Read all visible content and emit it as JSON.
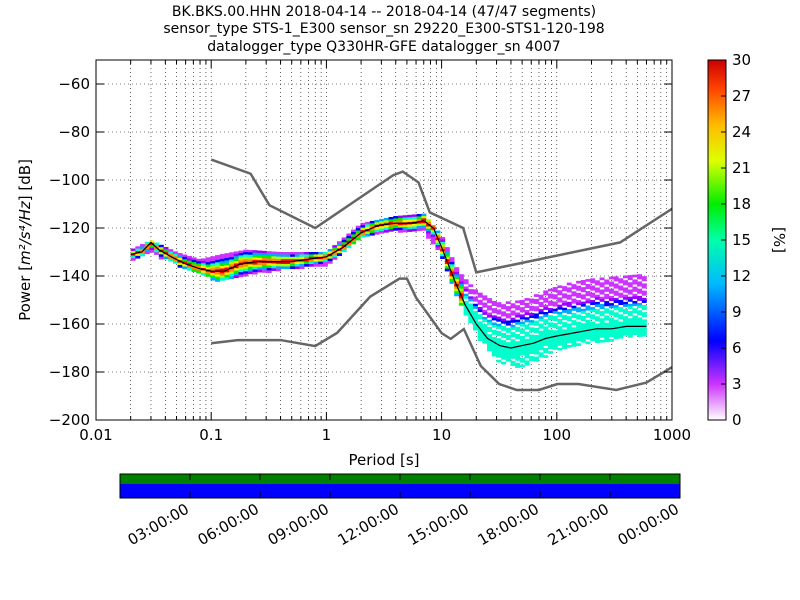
{
  "title": {
    "line1": "BK.BKS.00.HHN   2018-04-14 -- 2018-04-14  (47/47 segments)",
    "line2": "sensor_type STS-1_E300 sensor_sn 29220_E300-STS1-120-198",
    "line3": "datalogger_type Q330HR-GFE datalogger_sn 4007"
  },
  "chart_data": {
    "type": "heatmap",
    "xlabel": "Period [s]",
    "ylabel_prefix": "Power [",
    "ylabel_math": "m²/s⁴/Hz",
    "ylabel_suffix": "] [dB]",
    "xscale": "log",
    "xlim": [
      0.01,
      1000
    ],
    "ylim": [
      -200,
      -50
    ],
    "x_ticks": [
      0.01,
      0.1,
      1,
      10,
      100,
      1000
    ],
    "x_tick_labels": [
      "0.01",
      "0.1",
      "1",
      "10",
      "100",
      "1000"
    ],
    "y_ticks": [
      -200,
      -180,
      -160,
      -140,
      -120,
      -100,
      -80,
      -60
    ],
    "y_tick_labels": [
      "−200",
      "−180",
      "−160",
      "−140",
      "−120",
      "−100",
      "−80",
      "−60"
    ],
    "grid": "dotted",
    "colorbar": {
      "label": "[%]",
      "range": [
        0,
        30
      ],
      "ticks": [
        0,
        3,
        6,
        9,
        12,
        15,
        18,
        21,
        24,
        27,
        30
      ],
      "tick_labels": [
        "0",
        "3",
        "6",
        "9",
        "12",
        "15",
        "18",
        "21",
        "24",
        "27",
        "30"
      ]
    },
    "noise_models": {
      "high": {
        "periods": [
          0.1,
          0.22,
          0.32,
          0.8,
          3.8,
          4.6,
          6.3,
          7.9,
          15.4,
          20,
          354.8,
          1000
        ],
        "power": [
          -91.5,
          -97.4,
          -110.5,
          -120,
          -98,
          -96.5,
          -101,
          -113.5,
          -120,
          -138.5,
          -126,
          -112
        ]
      },
      "low": {
        "periods": [
          0.1,
          0.17,
          0.4,
          0.8,
          1.24,
          2.4,
          4.3,
          5,
          6,
          10,
          12,
          15.6,
          21.9,
          31.6,
          45,
          70,
          101,
          154,
          328,
          600,
          1000
        ],
        "power": [
          -168,
          -166.7,
          -166.7,
          -169.2,
          -163.7,
          -148.6,
          -141.1,
          -141.1,
          -149,
          -163.8,
          -166.2,
          -162.1,
          -177.5,
          -185,
          -187.5,
          -187.5,
          -185,
          -185,
          -187.5,
          -184.4,
          -178
        ]
      }
    },
    "psd_mode": {
      "periods": [
        0.02,
        0.025,
        0.03,
        0.035,
        0.045,
        0.06,
        0.08,
        0.1,
        0.13,
        0.18,
        0.25,
        0.35,
        0.5,
        0.7,
        1,
        1.4,
        2,
        2.8,
        4,
        5.5,
        7,
        8.5,
        10,
        13,
        16,
        20,
        25,
        32,
        40,
        50,
        63,
        80,
        100,
        130,
        170,
        220,
        300,
        400,
        600
      ],
      "power": [
        -131,
        -130,
        -126,
        -129,
        -132,
        -135,
        -137,
        -138,
        -138,
        -135,
        -134,
        -134,
        -134,
        -133,
        -132,
        -128,
        -122,
        -119,
        -118,
        -118,
        -117,
        -120,
        -128,
        -142,
        -152,
        -160,
        -166,
        -169,
        -170,
        -169,
        -168,
        -166,
        -165,
        -164,
        -163,
        -162,
        -162,
        -161,
        -161
      ]
    },
    "psd_spread": {
      "periods": [
        0.02,
        0.03,
        0.05,
        0.08,
        0.12,
        0.2,
        0.4,
        1,
        2,
        4,
        7,
        10,
        14,
        20,
        30,
        50,
        80,
        120,
        200,
        350,
        600
      ],
      "lower": [
        -133,
        -130,
        -135,
        -139,
        -142,
        -139,
        -137,
        -135,
        -124,
        -121,
        -121,
        -131,
        -150,
        -164,
        -175,
        -178,
        -173,
        -170,
        -168,
        -166,
        -165
      ],
      "upper": [
        -129,
        -125,
        -130,
        -133,
        -131,
        -129,
        -130,
        -130,
        -118,
        -115,
        -114,
        -123,
        -138,
        -146,
        -151,
        -150,
        -146,
        -143,
        -141,
        -140,
        -139
      ]
    },
    "time_axis": {
      "labels": [
        "03:00:00",
        "06:00:00",
        "09:00:00",
        "12:00:00",
        "15:00:00",
        "18:00:00",
        "21:00:00",
        "00:00:00"
      ],
      "bands": [
        {
          "name": "data-coverage",
          "color": "#008000"
        },
        {
          "name": "psd-segments",
          "color": "#0000ff"
        }
      ]
    }
  }
}
